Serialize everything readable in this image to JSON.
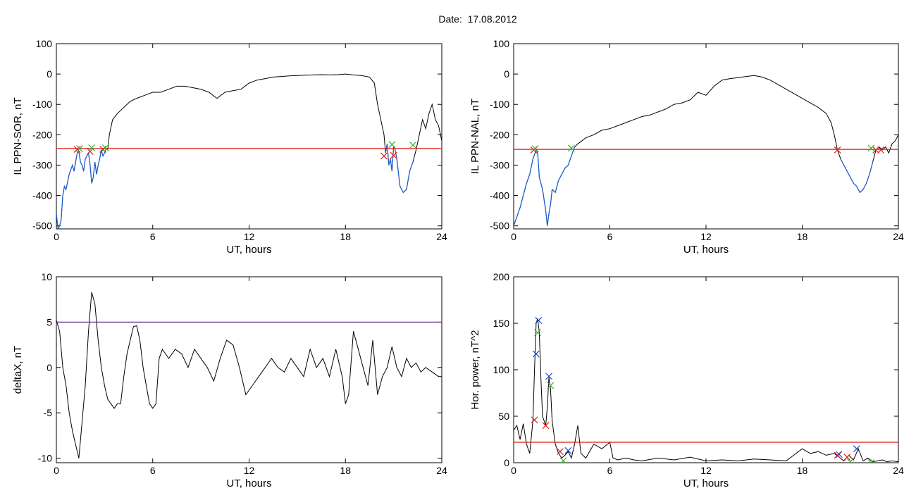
{
  "page": {
    "title": "Date:  17.08.2012"
  },
  "colors": {
    "trace": "#000000",
    "storm": "#1a5fd0",
    "threshold": "#e0201a",
    "threshold2": "#6a2d8a",
    "cross_red": "#e0201a",
    "cross_green": "#2bb52b",
    "cross_blue": "#1a44c8"
  },
  "chart_data": [
    {
      "name": "top-left",
      "type": "line",
      "xlabel": "UT, hours",
      "ylabel": "IL PPN-SOR, nT",
      "xlim": [
        0,
        24
      ],
      "ylim": [
        -510,
        100
      ],
      "xticks": [
        0,
        6,
        12,
        18,
        24
      ],
      "yticks": [
        100,
        0,
        -100,
        -200,
        -300,
        -400,
        -500
      ],
      "threshold": -245,
      "storm_intervals": [
        [
          0,
          3.2
        ],
        [
          20.5,
          22.3
        ]
      ],
      "series": [
        {
          "x": [
            0,
            0.1,
            0.2,
            0.3,
            0.4,
            0.5,
            0.6,
            0.8,
            1.0,
            1.1,
            1.2,
            1.3,
            1.4,
            1.5,
            1.6,
            1.7,
            1.8,
            1.9,
            2.0,
            2.1,
            2.2,
            2.3,
            2.4,
            2.5,
            2.6,
            2.7,
            2.8,
            2.9,
            3.0,
            3.1,
            3.2,
            3.3,
            3.5,
            3.8,
            4.2,
            4.6,
            5.0,
            5.5,
            6.0,
            6.5,
            7.0,
            7.5,
            8.0,
            8.5,
            9.0,
            9.5,
            10.0,
            10.5,
            11.0,
            11.5,
            12.0,
            12.5,
            13.0,
            13.5,
            14.0,
            14.5,
            15.0,
            15.5,
            16.0,
            16.5,
            17.0,
            17.5,
            18.0,
            18.5,
            19.0,
            19.5,
            19.8,
            20.0,
            20.2,
            20.4,
            20.5,
            20.6,
            20.7,
            20.8,
            20.9,
            21.0,
            21.1,
            21.2,
            21.4,
            21.6,
            21.8,
            22.0,
            22.2,
            22.4,
            22.6,
            22.8,
            23.0,
            23.2,
            23.4,
            23.6,
            23.8,
            24.0
          ],
          "y": [
            -460,
            -510,
            -500,
            -480,
            -400,
            -370,
            -380,
            -330,
            -300,
            -320,
            -290,
            -260,
            -255,
            -290,
            -300,
            -320,
            -280,
            -270,
            -260,
            -300,
            -360,
            -340,
            -290,
            -330,
            -300,
            -280,
            -250,
            -270,
            -260,
            -245,
            -250,
            -200,
            -150,
            -130,
            -110,
            -90,
            -80,
            -70,
            -60,
            -60,
            -50,
            -40,
            -40,
            -45,
            -50,
            -60,
            -80,
            -60,
            -55,
            -50,
            -30,
            -20,
            -15,
            -10,
            -8,
            -6,
            -5,
            -4,
            -3,
            -2,
            -3,
            -2,
            0,
            -3,
            -5,
            -10,
            -30,
            -100,
            -150,
            -200,
            -260,
            -230,
            -300,
            -280,
            -320,
            -240,
            -250,
            -280,
            -370,
            -390,
            -380,
            -320,
            -290,
            -250,
            -200,
            -150,
            -180,
            -130,
            -100,
            -150,
            -170,
            -220
          ]
        }
      ],
      "markers": [
        {
          "x": 1.3,
          "y": -248,
          "color": "red"
        },
        {
          "x": 1.45,
          "y": -246,
          "color": "green"
        },
        {
          "x": 2.1,
          "y": -255,
          "color": "red"
        },
        {
          "x": 2.2,
          "y": -243,
          "color": "green"
        },
        {
          "x": 2.9,
          "y": -248,
          "color": "red"
        },
        {
          "x": 3.05,
          "y": -243,
          "color": "green"
        },
        {
          "x": 20.4,
          "y": -270,
          "color": "red"
        },
        {
          "x": 20.9,
          "y": -232,
          "color": "green"
        },
        {
          "x": 21.0,
          "y": -268,
          "color": "red"
        },
        {
          "x": 22.2,
          "y": -234,
          "color": "green"
        }
      ]
    },
    {
      "name": "top-right",
      "type": "line",
      "xlabel": "UT, hours",
      "ylabel": "IL PPN-NAL, nT",
      "xlim": [
        0,
        24
      ],
      "ylim": [
        -510,
        100
      ],
      "xticks": [
        0,
        6,
        12,
        18,
        24
      ],
      "yticks": [
        100,
        0,
        -100,
        -200,
        -300,
        -400,
        -500
      ],
      "threshold": -248,
      "storm_intervals": [
        [
          0,
          3.8
        ],
        [
          20.3,
          22.5
        ]
      ],
      "series": [
        {
          "x": [
            0,
            0.2,
            0.4,
            0.6,
            0.8,
            1.0,
            1.2,
            1.4,
            1.5,
            1.6,
            1.8,
            2.0,
            2.1,
            2.2,
            2.3,
            2.4,
            2.6,
            2.8,
            3.0,
            3.2,
            3.4,
            3.6,
            3.8,
            4.0,
            4.5,
            5.0,
            5.5,
            6.0,
            6.5,
            7.0,
            7.5,
            8.0,
            8.5,
            9.0,
            9.5,
            10.0,
            10.5,
            11.0,
            11.5,
            12.0,
            12.5,
            13.0,
            13.5,
            14.0,
            14.5,
            15.0,
            15.5,
            16.0,
            16.5,
            17.0,
            17.5,
            18.0,
            18.5,
            19.0,
            19.5,
            19.8,
            20.0,
            20.2,
            20.4,
            20.6,
            20.8,
            21.0,
            21.2,
            21.4,
            21.6,
            21.8,
            22.0,
            22.2,
            22.4,
            22.6,
            22.8,
            23.0,
            23.2,
            23.4,
            23.6,
            23.8,
            24.0
          ],
          "y": [
            -500,
            -470,
            -440,
            -400,
            -360,
            -330,
            -280,
            -250,
            -260,
            -340,
            -380,
            -450,
            -500,
            -460,
            -430,
            -380,
            -390,
            -350,
            -330,
            -310,
            -300,
            -270,
            -240,
            -230,
            -210,
            -200,
            -185,
            -180,
            -170,
            -160,
            -150,
            -140,
            -135,
            -125,
            -115,
            -100,
            -95,
            -85,
            -60,
            -70,
            -40,
            -20,
            -15,
            -12,
            -8,
            -5,
            -10,
            -20,
            -35,
            -50,
            -65,
            -80,
            -95,
            -110,
            -130,
            -160,
            -200,
            -250,
            -280,
            -300,
            -320,
            -340,
            -360,
            -370,
            -390,
            -380,
            -360,
            -330,
            -290,
            -250,
            -240,
            -250,
            -240,
            -260,
            -230,
            -220,
            -200
          ]
        }
      ],
      "markers": [
        {
          "x": 1.25,
          "y": -250,
          "color": "red"
        },
        {
          "x": 1.35,
          "y": -246,
          "color": "green"
        },
        {
          "x": 3.6,
          "y": -244,
          "color": "green"
        },
        {
          "x": 20.2,
          "y": -250,
          "color": "red"
        },
        {
          "x": 22.3,
          "y": -244,
          "color": "green"
        },
        {
          "x": 22.6,
          "y": -250,
          "color": "red"
        },
        {
          "x": 22.9,
          "y": -250,
          "color": "red"
        }
      ]
    },
    {
      "name": "bottom-left",
      "type": "line",
      "xlabel": "UT, hours",
      "ylabel": "deltaX, nT",
      "xlim": [
        0,
        24
      ],
      "ylim": [
        -10.5,
        10
      ],
      "xticks": [
        0,
        6,
        12,
        18,
        24
      ],
      "yticks": [
        10,
        5,
        0,
        -5,
        -10
      ],
      "threshold": 5,
      "series": [
        {
          "x": [
            0,
            0.2,
            0.4,
            0.6,
            0.8,
            1.0,
            1.2,
            1.4,
            1.6,
            1.8,
            2.0,
            2.2,
            2.4,
            2.6,
            2.8,
            3.0,
            3.2,
            3.4,
            3.6,
            3.8,
            4.0,
            4.2,
            4.4,
            4.6,
            4.8,
            5.0,
            5.2,
            5.4,
            5.6,
            5.8,
            6.0,
            6.2,
            6.4,
            6.6,
            6.8,
            7.0,
            7.4,
            7.8,
            8.2,
            8.6,
            9.0,
            9.4,
            9.8,
            10.2,
            10.6,
            11.0,
            11.4,
            11.8,
            12.2,
            12.6,
            13.0,
            13.4,
            13.8,
            14.2,
            14.6,
            15.0,
            15.4,
            15.8,
            16.2,
            16.6,
            17.0,
            17.4,
            17.8,
            18.0,
            18.2,
            18.5,
            18.8,
            19.1,
            19.4,
            19.7,
            20.0,
            20.3,
            20.6,
            20.9,
            21.2,
            21.5,
            21.8,
            22.1,
            22.4,
            22.7,
            23.0,
            23.4,
            23.8,
            24.0
          ],
          "y": [
            5.2,
            4,
            0,
            -2,
            -5,
            -7,
            -8.5,
            -10,
            -6,
            -2,
            4,
            8.3,
            7,
            3,
            0,
            -2,
            -3.5,
            -4,
            -4.5,
            -4,
            -4,
            -1,
            1.5,
            3,
            4.5,
            4.6,
            3,
            0,
            -2,
            -4,
            -4.5,
            -4,
            1,
            2,
            1.5,
            1,
            2,
            1.5,
            0,
            2,
            1,
            0,
            -1.5,
            1,
            3,
            2.5,
            0,
            -3,
            -2,
            -1,
            0,
            1,
            0,
            -0.5,
            1,
            0,
            -1,
            2,
            0,
            1,
            -1,
            2,
            -1,
            -4,
            -3,
            4,
            2,
            0,
            -2,
            3,
            -3,
            -1,
            0,
            2.3,
            0,
            -1,
            1,
            0,
            0.5,
            -0.5,
            0,
            -0.5,
            -1,
            -1
          ]
        }
      ]
    },
    {
      "name": "bottom-right",
      "type": "line",
      "xlabel": "UT, hours",
      "ylabel": "Hor. power, nT^2",
      "xlim": [
        0,
        24
      ],
      "ylim": [
        0,
        200
      ],
      "xticks": [
        0,
        6,
        12,
        18,
        24
      ],
      "yticks": [
        200,
        150,
        100,
        50,
        0
      ],
      "threshold": 22,
      "series": [
        {
          "x": [
            0,
            0.2,
            0.4,
            0.6,
            0.8,
            1.0,
            1.2,
            1.3,
            1.4,
            1.5,
            1.6,
            1.7,
            1.8,
            2.0,
            2.1,
            2.2,
            2.3,
            2.4,
            2.6,
            2.8,
            3.0,
            3.2,
            3.4,
            3.6,
            3.8,
            4.0,
            4.2,
            4.5,
            5.0,
            5.5,
            6.0,
            6.2,
            6.5,
            7.0,
            7.5,
            8.0,
            9.0,
            10.0,
            11.0,
            12.0,
            13.0,
            14.0,
            15.0,
            16.0,
            17.0,
            18.0,
            18.5,
            19.0,
            19.5,
            20.0,
            20.3,
            20.6,
            20.9,
            21.2,
            21.5,
            21.8,
            22.1,
            22.4,
            22.7,
            23.0,
            23.3,
            23.6,
            24.0
          ],
          "y": [
            35,
            40,
            25,
            42,
            20,
            10,
            45,
            100,
            150,
            155,
            140,
            90,
            50,
            40,
            60,
            92,
            80,
            45,
            20,
            10,
            5,
            8,
            12,
            5,
            20,
            40,
            10,
            5,
            20,
            15,
            22,
            5,
            3,
            5,
            3,
            2,
            5,
            3,
            6,
            2,
            3,
            2,
            4,
            3,
            2,
            15,
            10,
            12,
            8,
            10,
            6,
            2,
            8,
            3,
            15,
            2,
            5,
            1,
            2,
            3,
            1,
            2,
            1
          ]
        }
      ],
      "markers": [
        {
          "x": 1.3,
          "y": 46,
          "color": "red"
        },
        {
          "x": 1.4,
          "y": 117,
          "color": "blue"
        },
        {
          "x": 1.5,
          "y": 140,
          "color": "green"
        },
        {
          "x": 1.55,
          "y": 153,
          "color": "blue"
        },
        {
          "x": 2.0,
          "y": 40,
          "color": "red"
        },
        {
          "x": 2.2,
          "y": 93,
          "color": "blue"
        },
        {
          "x": 2.3,
          "y": 83,
          "color": "green"
        },
        {
          "x": 2.9,
          "y": 12,
          "color": "red"
        },
        {
          "x": 3.1,
          "y": 2,
          "color": "green"
        },
        {
          "x": 3.4,
          "y": 13,
          "color": "blue"
        },
        {
          "x": 20.2,
          "y": 8,
          "color": "red"
        },
        {
          "x": 20.3,
          "y": 9,
          "color": "blue"
        },
        {
          "x": 20.8,
          "y": 6,
          "color": "red"
        },
        {
          "x": 21.4,
          "y": 15,
          "color": "blue"
        },
        {
          "x": 21.0,
          "y": 1,
          "color": "green"
        },
        {
          "x": 22.3,
          "y": 0,
          "color": "green"
        }
      ]
    }
  ]
}
